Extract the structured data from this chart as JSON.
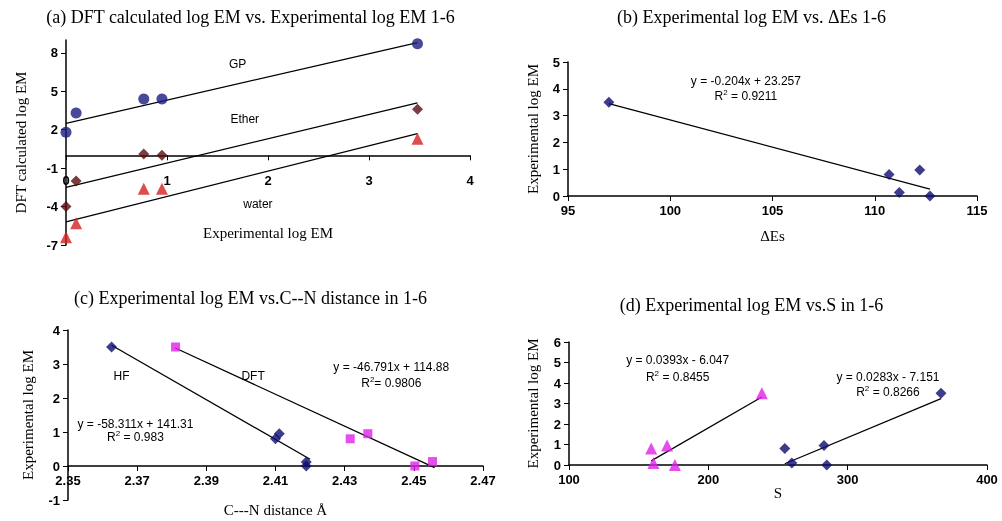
{
  "chart_data": [
    {
      "type": "scatter",
      "title": "(a) DFT calculated log EM vs. Experimental log EM 1-6",
      "xlabel": "Experimental log EM",
      "ylabel": "DFT calculated log EM",
      "xlim": [
        0,
        4
      ],
      "ylim": [
        -7,
        9
      ],
      "xticks": [
        0,
        1,
        2,
        3,
        4
      ],
      "yticks": [
        -7,
        -4,
        -1,
        2,
        5,
        8
      ],
      "series": [
        {
          "type": "scatter",
          "marker": "circle",
          "color": "#1c1c80",
          "x": [
            0,
            0.1,
            0.77,
            0.95,
            3.48
          ],
          "values": [
            1.8,
            3.3,
            4.4,
            4.4,
            8.7
          ]
        },
        {
          "type": "scatter",
          "marker": "diamond",
          "color": "#5a0c0c",
          "x": [
            0,
            0.1,
            0.77,
            0.95,
            3.48
          ],
          "values": [
            -4,
            -2,
            0.1,
            0,
            3.6
          ]
        },
        {
          "type": "scatter",
          "marker": "triangle",
          "color": "#d42020",
          "x": [
            0,
            0.1,
            0.77,
            0.95,
            3.48
          ],
          "values": [
            -6.4,
            -5.3,
            -2.6,
            -2.6,
            1.3
          ]
        },
        {
          "type": "line",
          "marker": "none",
          "color": "#000000",
          "x": [
            0,
            3.48
          ],
          "values": [
            2.5,
            8.8
          ]
        },
        {
          "type": "line",
          "marker": "none",
          "color": "#000000",
          "x": [
            0,
            3.48
          ],
          "values": [
            -2.5,
            4.1
          ]
        },
        {
          "type": "line",
          "marker": "none",
          "color": "#000000",
          "x": [
            0,
            3.48
          ],
          "values": [
            -5.2,
            1.7
          ]
        }
      ],
      "annotations": [
        "GP",
        "Ether",
        "water"
      ]
    },
    {
      "type": "scatter",
      "title": "(b) Experimental log EM vs. ΔEs 1-6",
      "xlabel": "ΔEs",
      "ylabel": "Experimental log EM",
      "xlim": [
        95,
        115
      ],
      "ylim": [
        0,
        5
      ],
      "xticks": [
        95,
        100,
        105,
        110,
        115
      ],
      "yticks": [
        0,
        1,
        2,
        3,
        4,
        5
      ],
      "series": [
        {
          "type": "scatter",
          "marker": "diamond",
          "color": "#0c0c6e",
          "x": [
            97,
            110.7,
            111.2,
            112.2,
            112.7
          ],
          "values": [
            3.5,
            0.8,
            0.13,
            0.97,
            0
          ]
        },
        {
          "type": "line",
          "marker": "none",
          "color": "#000000",
          "x": [
            97,
            112.7
          ],
          "values": [
            3.45,
            0.26
          ]
        }
      ],
      "annotations": [
        "y = -0.204x + 23.257",
        "R$^{2}$ = 0.9211"
      ]
    },
    {
      "type": "scatter",
      "title": "(c) Experimental log EM vs.C--N distance in 1-6",
      "xlabel": "C---N distance Å",
      "ylabel": "Experimental log EM",
      "xlim": [
        2.35,
        2.47
      ],
      "ylim": [
        -1,
        4
      ],
      "xticks": [
        2.35,
        2.37,
        2.39,
        2.41,
        2.43,
        2.45,
        2.47
      ],
      "yticks": [
        -1,
        0,
        1,
        2,
        3,
        4
      ],
      "series": [
        {
          "type": "scatter",
          "marker": "diamond",
          "color": "#0c0c6e",
          "x": [
            2.3626,
            2.41,
            2.4111,
            2.4189,
            2.4189
          ],
          "values": [
            3.5,
            0.8,
            0.95,
            0.12,
            0
          ]
        },
        {
          "type": "scatter",
          "marker": "square",
          "color": "#e020e8",
          "x": [
            2.3811,
            2.4316,
            2.4367,
            2.4503,
            2.4554
          ],
          "values": [
            3.5,
            0.8,
            0.95,
            0,
            0.13
          ]
        },
        {
          "type": "line",
          "marker": "none",
          "color": "#000000",
          "x": [
            2.3626,
            2.42
          ],
          "values": [
            3.55,
            0.2
          ]
        },
        {
          "type": "line",
          "marker": "none",
          "color": "#000000",
          "x": [
            2.381,
            2.456
          ],
          "values": [
            3.47,
            -0.05
          ]
        }
      ],
      "annotations": [
        "HF",
        "DFT",
        "y = -46.791x + 114.88",
        "R$^{2}$= 0.9806",
        "y = -58.311x + 141.31",
        "R$^{2}$ = 0.983"
      ]
    },
    {
      "type": "scatter",
      "title": "(d) Experimental log EM vs.S in 1-6",
      "xlabel": "S",
      "ylabel": "Experimental log EM",
      "xlim": [
        100,
        400
      ],
      "ylim": [
        0,
        6
      ],
      "xticks": [
        100,
        200,
        300,
        400
      ],
      "yticks": [
        0,
        1,
        2,
        3,
        4,
        5,
        6
      ],
      "series": [
        {
          "type": "scatter",
          "marker": "triangle",
          "color": "#e020e8",
          "x": [
            159,
            160.6,
            170.4,
            176,
            238.4
          ],
          "values": [
            0.8,
            0.1,
            0.95,
            0,
            3.5
          ]
        },
        {
          "type": "scatter",
          "marker": "diamond",
          "color": "#0c0c6e",
          "x": [
            254.9,
            259.9,
            283,
            285,
            367
          ],
          "values": [
            0.8,
            0.1,
            0.95,
            0,
            3.5
          ]
        },
        {
          "type": "line",
          "marker": "none",
          "color": "#000000",
          "x": [
            159,
            238.4
          ],
          "values": [
            0.2,
            3.32
          ]
        },
        {
          "type": "line",
          "marker": "none",
          "color": "#000000",
          "x": [
            254.9,
            367
          ],
          "values": [
            0.06,
            3.24
          ]
        }
      ],
      "annotations": [
        "y = 0.0393x - 6.047",
        "R$^{2}$ = 0.8455",
        "y = 0.0283x - 7.151",
        "R$^{2}$ = 0.8266"
      ]
    }
  ]
}
